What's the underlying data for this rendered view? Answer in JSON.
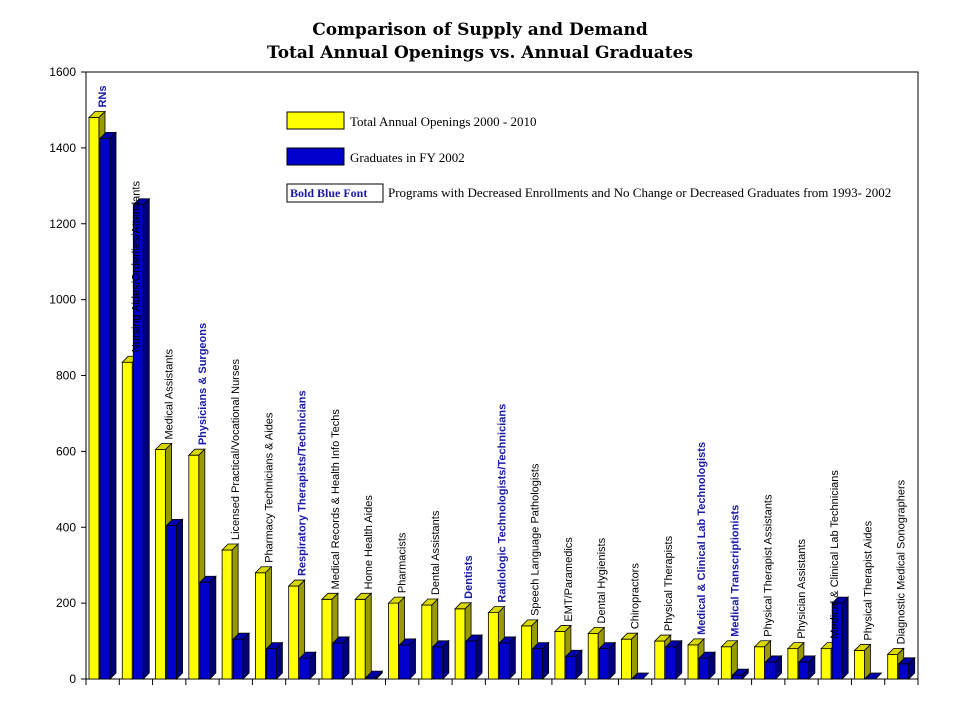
{
  "chart_data": {
    "type": "bar",
    "title": "Comparison of Supply and Demand",
    "subtitle": "Total Annual Openings vs. Annual Graduates",
    "ylim": [
      0,
      1600
    ],
    "yticks": [
      0,
      200,
      400,
      600,
      800,
      1000,
      1200,
      1400,
      1600
    ],
    "categories": [
      "RNs",
      "Nursing Aides/Orderlies/Attendants",
      "Medical Assistants",
      "Physicians & Surgeons",
      "Licensed Practical/Vocational Nurses",
      "Pharmacy Technicians & Aides",
      "Respiratory Therapists/Technicians",
      "Medical Records & Health Info Techs",
      "Home Health Aides",
      "Pharmacists",
      "Dental Assistants",
      "Dentists",
      "Radiologic Technologists/Technicians",
      "Speech Language Pathologists",
      "EMT/Paramedics",
      "Dental Hygienists",
      "Chiropractors",
      "Physical Therapists",
      "Medical & Clinical Lab Technologists",
      "Medical Transcriptionists",
      "Physical Therapist Assistants",
      "Physician Assistants",
      "Medical & Clinical Lab Technicians",
      "Physical Therapist Aides",
      "Diagnostic Medical Sonographers"
    ],
    "bold_categories": [
      "RNs",
      "Physicians & Surgeons",
      "Respiratory Therapists/Technicians",
      "Dentists",
      "Radiologic Technologists/Technicians",
      "Medical & Clinical Lab Technologists",
      "Medical Transcriptionists"
    ],
    "series": [
      {
        "name": "Total Annual Openings 2000 - 2010",
        "color": "#ffff00",
        "values": [
          1480,
          835,
          605,
          590,
          340,
          280,
          245,
          210,
          210,
          200,
          195,
          185,
          175,
          140,
          125,
          120,
          105,
          100,
          90,
          85,
          85,
          80,
          80,
          75,
          65
        ]
      },
      {
        "name": "Graduates in FY 2002",
        "color": "#0000cc",
        "values": [
          1425,
          1250,
          405,
          255,
          105,
          80,
          55,
          95,
          5,
          90,
          85,
          100,
          95,
          80,
          60,
          80,
          0,
          85,
          55,
          10,
          45,
          45,
          200,
          0,
          40
        ]
      }
    ]
  },
  "legend": {
    "key_label": "Bold Blue Font",
    "key_description": "Programs with Decreased Enrollments and No Change or Decreased Graduates from 1993- 2002"
  }
}
